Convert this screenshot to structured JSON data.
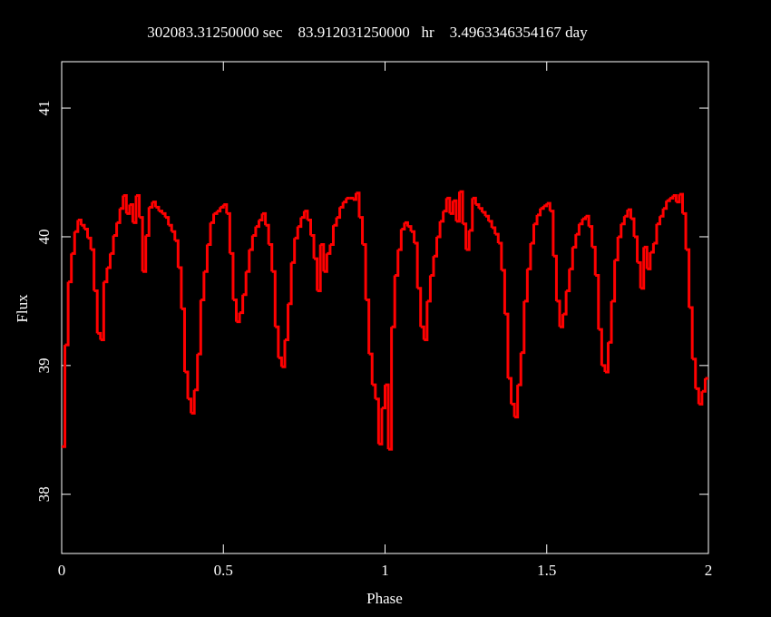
{
  "chart_data": {
    "type": "step",
    "title": "302083.31250000 sec    83.912031250000   hr    3.4963346354167 day",
    "x_label": "Phase",
    "y_label": "Flux",
    "xlim": [
      0,
      2
    ],
    "ylim": [
      37.54,
      41.36
    ],
    "xticks": [
      0,
      0.5,
      1,
      1.5,
      2
    ],
    "yticks": [
      38,
      39,
      40,
      41
    ],
    "series": [
      {
        "color": "#ff0000",
        "x": [
          0,
          0.01,
          0.02,
          0.03,
          0.04,
          0.05,
          0.06,
          0.07,
          0.08,
          0.09,
          0.1,
          0.11,
          0.12,
          0.13,
          0.14,
          0.15,
          0.16,
          0.17,
          0.18,
          0.19,
          0.2,
          0.21,
          0.22,
          0.23,
          0.24,
          0.25,
          0.26,
          0.27,
          0.28,
          0.29,
          0.3,
          0.31,
          0.32,
          0.33,
          0.34,
          0.35,
          0.36,
          0.37,
          0.38,
          0.39,
          0.4,
          0.41,
          0.42,
          0.43,
          0.44,
          0.45,
          0.46,
          0.47,
          0.48,
          0.49,
          0.5,
          0.51,
          0.52,
          0.53,
          0.54,
          0.55,
          0.56,
          0.57,
          0.58,
          0.59,
          0.6,
          0.61,
          0.62,
          0.63,
          0.64,
          0.65,
          0.66,
          0.67,
          0.68,
          0.69,
          0.7,
          0.71,
          0.72,
          0.73,
          0.74,
          0.75,
          0.76,
          0.77,
          0.78,
          0.79,
          0.8,
          0.81,
          0.82,
          0.83,
          0.84,
          0.85,
          0.86,
          0.87,
          0.88,
          0.89,
          0.9,
          0.91,
          0.92,
          0.93,
          0.94,
          0.95,
          0.96,
          0.97,
          0.98,
          0.99,
          1,
          1.01,
          1.02,
          1.03,
          1.04,
          1.05,
          1.06,
          1.07,
          1.08,
          1.09,
          1.1,
          1.11,
          1.12,
          1.13,
          1.14,
          1.15,
          1.16,
          1.17,
          1.18,
          1.19,
          1.2,
          1.21,
          1.22,
          1.23,
          1.24,
          1.25,
          1.26,
          1.27,
          1.28,
          1.29,
          1.3,
          1.31,
          1.32,
          1.33,
          1.34,
          1.35,
          1.36,
          1.37,
          1.38,
          1.39,
          1.4,
          1.41,
          1.42,
          1.43,
          1.44,
          1.45,
          1.46,
          1.47,
          1.48,
          1.49,
          1.5,
          1.51,
          1.52,
          1.53,
          1.54,
          1.55,
          1.56,
          1.57,
          1.58,
          1.59,
          1.6,
          1.61,
          1.62,
          1.63,
          1.64,
          1.65,
          1.66,
          1.67,
          1.68,
          1.69,
          1.7,
          1.71,
          1.72,
          1.73,
          1.74,
          1.75,
          1.76,
          1.77,
          1.78,
          1.79,
          1.8,
          1.81,
          1.82,
          1.83,
          1.84,
          1.85,
          1.86,
          1.87,
          1.88,
          1.89,
          1.9,
          1.91,
          1.92,
          1.93,
          1.94,
          1.95,
          1.96,
          1.97,
          1.98,
          1.99
        ],
        "values": [
          38.37,
          39.16,
          39.65,
          39.87,
          40.04,
          40.13,
          40.09,
          40.06,
          39.99,
          39.9,
          39.58,
          39.25,
          39.2,
          39.65,
          39.76,
          39.87,
          40.01,
          40.11,
          40.22,
          40.32,
          40.18,
          40.25,
          40.11,
          40.32,
          40.15,
          39.73,
          40.01,
          40.23,
          40.27,
          40.23,
          40.2,
          40.18,
          40.15,
          40.09,
          40.04,
          39.97,
          39.76,
          39.44,
          38.95,
          38.74,
          38.63,
          38.81,
          39.09,
          39.51,
          39.73,
          39.94,
          40.11,
          40.18,
          40.2,
          40.23,
          40.25,
          40.18,
          39.87,
          39.51,
          39.34,
          39.41,
          39.55,
          39.73,
          39.9,
          40.01,
          40.08,
          40.13,
          40.18,
          40.09,
          39.94,
          39.73,
          39.3,
          39.06,
          38.99,
          39.2,
          39.48,
          39.8,
          39.99,
          40.08,
          40.15,
          40.2,
          40.13,
          40.01,
          39.83,
          39.58,
          39.94,
          39.73,
          39.87,
          39.94,
          40.09,
          40.15,
          40.23,
          40.27,
          40.3,
          40.3,
          40.29,
          40.34,
          40.15,
          39.94,
          39.51,
          39.09,
          38.85,
          38.74,
          38.39,
          38.67,
          38.85,
          38.35,
          39.3,
          39.7,
          39.9,
          40.06,
          40.11,
          40.08,
          40.04,
          39.95,
          39.6,
          39.3,
          39.2,
          39.5,
          39.7,
          39.85,
          40.0,
          40.12,
          40.2,
          40.3,
          40.18,
          40.28,
          40.12,
          40.35,
          40.1,
          39.9,
          40.05,
          40.3,
          40.25,
          40.22,
          40.19,
          40.16,
          40.12,
          40.07,
          40.02,
          39.95,
          39.74,
          39.4,
          38.9,
          38.7,
          38.6,
          38.85,
          39.1,
          39.5,
          39.75,
          39.95,
          40.1,
          40.17,
          40.22,
          40.24,
          40.26,
          40.2,
          39.85,
          39.5,
          39.3,
          39.4,
          39.58,
          39.75,
          39.92,
          40.02,
          40.1,
          40.14,
          40.16,
          40.08,
          39.92,
          39.7,
          39.28,
          39.0,
          38.95,
          39.18,
          39.5,
          39.82,
          40.0,
          40.1,
          40.16,
          40.21,
          40.14,
          40.0,
          39.8,
          39.6,
          39.92,
          39.75,
          39.88,
          39.95,
          40.1,
          40.16,
          40.22,
          40.28,
          40.3,
          40.32,
          40.27,
          40.33,
          40.18,
          39.9,
          39.45,
          39.05,
          38.82,
          38.7,
          38.8,
          38.9
        ]
      }
    ]
  }
}
